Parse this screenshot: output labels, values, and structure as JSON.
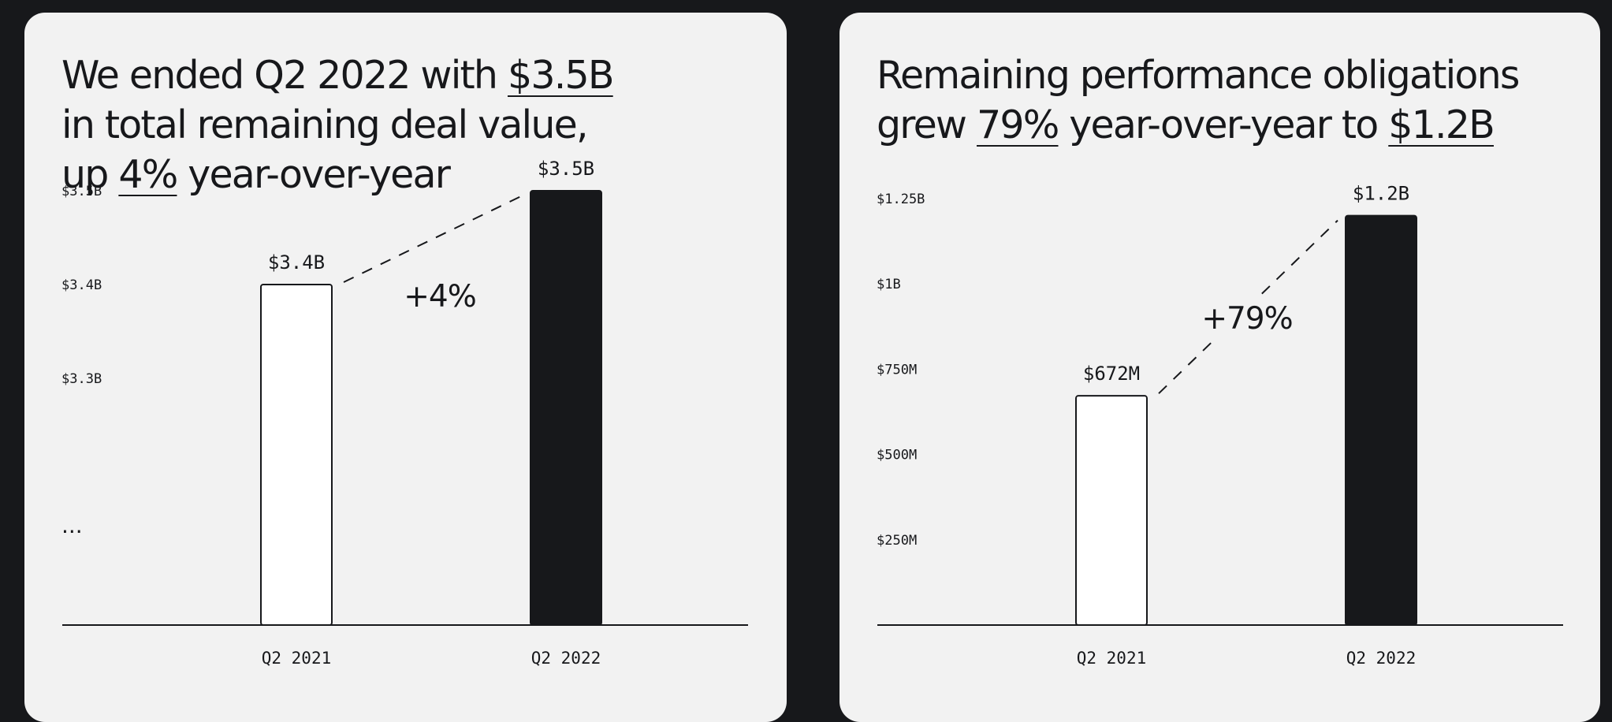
{
  "cards": [
    {
      "headline": {
        "line1_pre": "We ended Q2 2022 with ",
        "line1_hl": "$3.5B",
        "line2": "in total remaining deal value,",
        "line3_pre": "up ",
        "line3_hl": "4%",
        "line3_post": " year-over-year"
      }
    },
    {
      "headline": {
        "line1": "Remaining performance obligations",
        "line2_pre": "grew ",
        "line2_hl1": "79%",
        "line2_mid": " year-over-year to ",
        "line2_hl2": "$1.2B"
      }
    }
  ],
  "chart_data": [
    {
      "type": "bar",
      "title": "Total remaining deal value",
      "categories": [
        "Q2 2021",
        "Q2 2022"
      ],
      "values": [
        3.4,
        3.5
      ],
      "value_labels": [
        "$3.4B",
        "$3.5B"
      ],
      "bar_styles": [
        "outline",
        "filled"
      ],
      "yticks": [
        {
          "value": 3.5,
          "label": "$3.5B"
        },
        {
          "value": 3.4,
          "label": "$3.4B"
        },
        {
          "value": 3.3,
          "label": "$3.3B"
        }
      ],
      "axis_break_label": "...",
      "ylim": [
        3.0,
        3.5
      ],
      "annotation": "+4%",
      "grid": false,
      "colors": {
        "ink": "#17181b",
        "outline_fill": "#ffffff"
      }
    },
    {
      "type": "bar",
      "title": "Remaining performance obligations",
      "categories": [
        "Q2 2021",
        "Q2 2022"
      ],
      "values": [
        672,
        1200
      ],
      "value_labels": [
        "$672M",
        "$1.2B"
      ],
      "bar_styles": [
        "outline",
        "filled"
      ],
      "yticks": [
        {
          "value": 1250,
          "label": "$1.25B"
        },
        {
          "value": 1000,
          "label": "$1B"
        },
        {
          "value": 750,
          "label": "$750M"
        },
        {
          "value": 500,
          "label": "$500M"
        },
        {
          "value": 250,
          "label": "$250M"
        }
      ],
      "ylim": [
        0,
        1250
      ],
      "annotation": "+79%",
      "grid": false,
      "colors": {
        "ink": "#17181b",
        "outline_fill": "#ffffff"
      }
    }
  ]
}
